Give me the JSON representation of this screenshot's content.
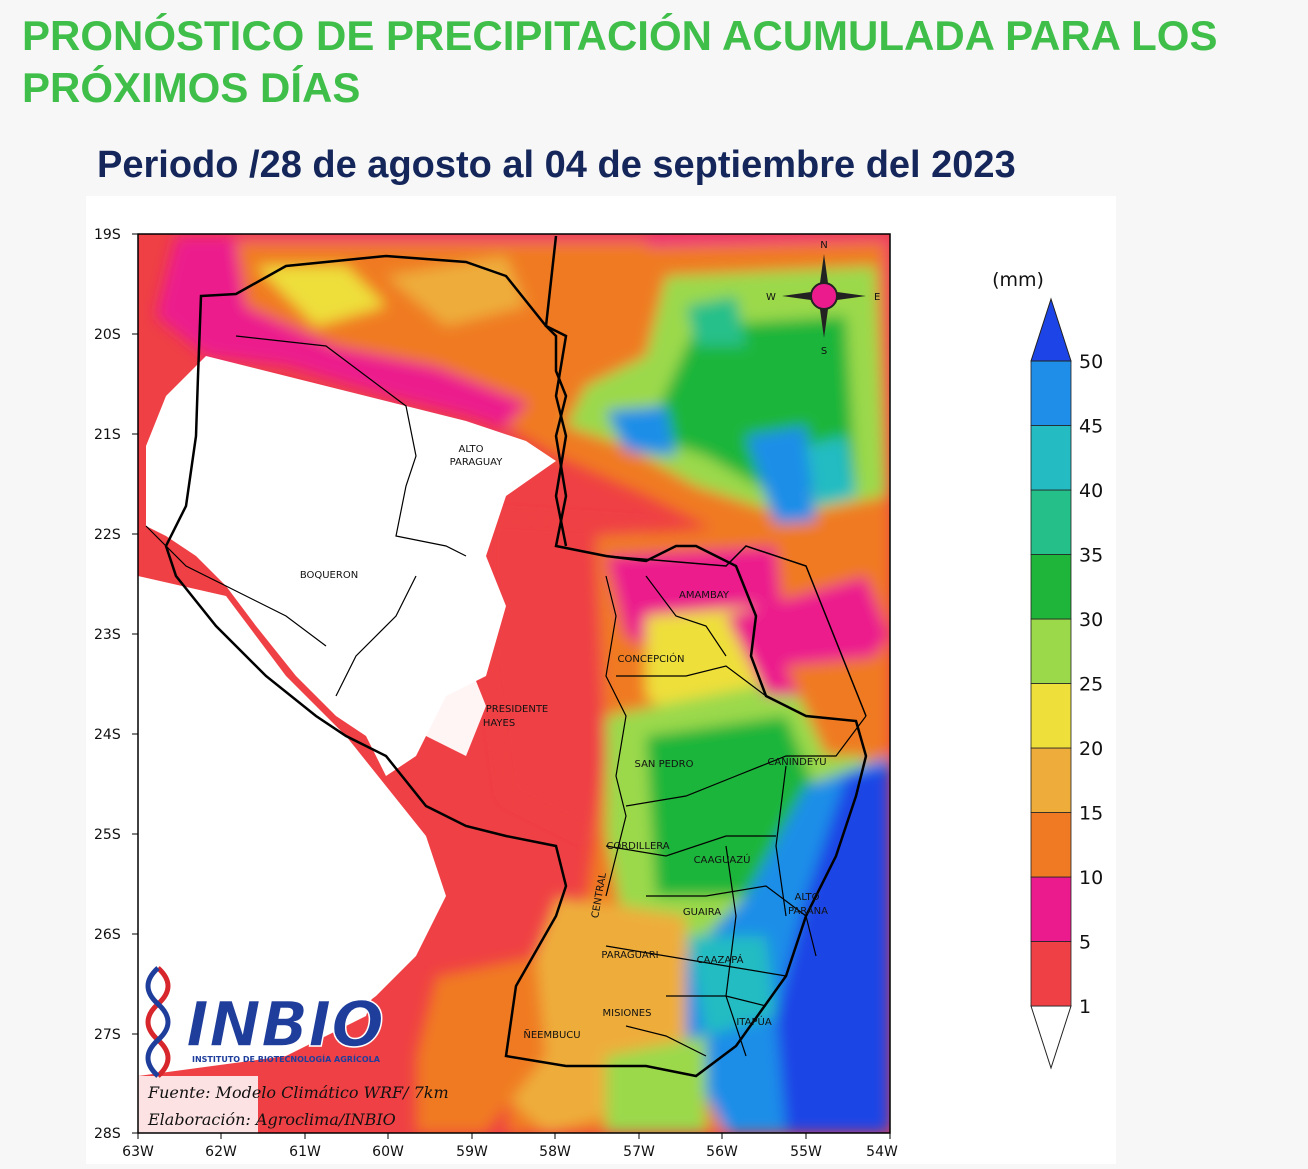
{
  "header": {
    "title": "PRONÓSTICO DE PRECIPITACIÓN ACUMULADA PARA LOS PRÓXIMOS DÍAS",
    "period": "Periodo /28 de agosto al 04 de septiembre del 2023"
  },
  "map": {
    "lat_ticks": [
      "19S",
      "20S",
      "21S",
      "22S",
      "23S",
      "24S",
      "25S",
      "26S",
      "27S",
      "28S"
    ],
    "lon_ticks": [
      "63W",
      "62W",
      "61W",
      "60W",
      "59W",
      "58W",
      "57W",
      "56W",
      "55W",
      "54W"
    ],
    "compass": {
      "n": "N",
      "s": "S",
      "e": "E",
      "w": "W"
    },
    "departments": [
      {
        "name": "ALTO PARAGUAY",
        "lines": [
          "ALTO",
          "PARAGUAY"
        ]
      },
      {
        "name": "BOQUERON",
        "lines": [
          "BOQUERON"
        ]
      },
      {
        "name": "PRESIDENTE HAYES",
        "lines": [
          "PRESIDENTE",
          "HAYES"
        ]
      },
      {
        "name": "AMAMBAY",
        "lines": [
          "AMAMBAY"
        ]
      },
      {
        "name": "CONCEPCIÓN",
        "lines": [
          "CONCEPCIÓN"
        ]
      },
      {
        "name": "SAN PEDRO",
        "lines": [
          "SAN PEDRO"
        ]
      },
      {
        "name": "CANINDEYU",
        "lines": [
          "CANINDEYU"
        ]
      },
      {
        "name": "CORDILLERA",
        "lines": [
          "CORDILLERA"
        ]
      },
      {
        "name": "CAAGUAZÚ",
        "lines": [
          "CAAGUAZÚ"
        ]
      },
      {
        "name": "ALTO PARANA",
        "lines": [
          "ALTO",
          "PARANA"
        ]
      },
      {
        "name": "CENTRAL",
        "lines": [
          "CENTRAL"
        ]
      },
      {
        "name": "GUAIRA",
        "lines": [
          "GUAIRA"
        ]
      },
      {
        "name": "PARAGUARI",
        "lines": [
          "PARAGUARI"
        ]
      },
      {
        "name": "CAAZAPÁ",
        "lines": [
          "CAAZAPÁ"
        ]
      },
      {
        "name": "MISIONES",
        "lines": [
          "MISIONES"
        ]
      },
      {
        "name": "ÑEEMBUCU",
        "lines": [
          "ÑEEMBUCU"
        ]
      },
      {
        "name": "ITAPÚA",
        "lines": [
          "ITAPÚA"
        ]
      }
    ]
  },
  "legend": {
    "unit": "(mm)",
    "levels": [
      "1",
      "5",
      "10",
      "15",
      "20",
      "25",
      "30",
      "35",
      "40",
      "45",
      "50"
    ],
    "colors": [
      "#ef4045",
      "#ec1b8d",
      "#f07a23",
      "#eead3a",
      "#eedf3a",
      "#9bd94b",
      "#1fb53b",
      "#25c08a",
      "#24bcc2",
      "#1f8ee8",
      "#1c44e6"
    ]
  },
  "logo": {
    "name": "INBIO",
    "subtitle": "INSTITUTO DE BIOTECNOLOGÍA AGRÍCOLA"
  },
  "credits": {
    "source": "Fuente: Modelo Climático WRF/ 7km",
    "made_by": "Elaboración: Agroclima/INBIO"
  }
}
